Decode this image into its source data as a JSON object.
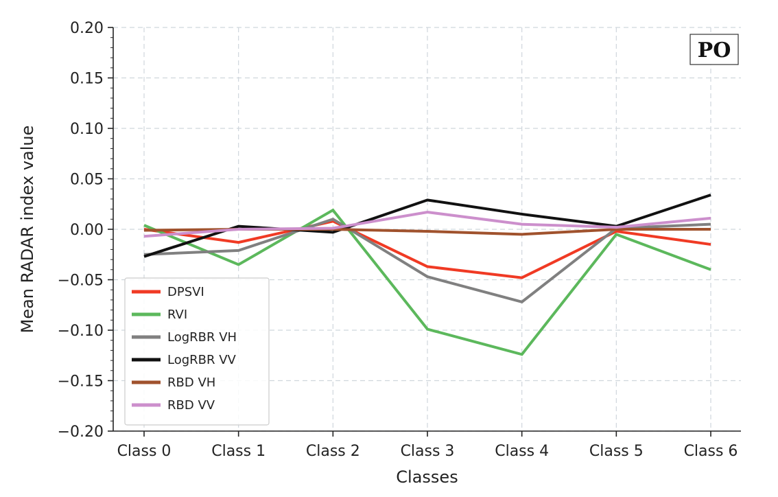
{
  "chart_data": {
    "type": "line",
    "title": "",
    "panel_label": "PO",
    "xlabel": "Classes",
    "ylabel": "Mean RADAR index value",
    "categories": [
      "Class 0",
      "Class 1",
      "Class 2",
      "Class 3",
      "Class 4",
      "Class 5",
      "Class 6"
    ],
    "ylim": [
      -0.2,
      0.2
    ],
    "yticks": [
      -0.2,
      -0.15,
      -0.1,
      -0.05,
      0.0,
      0.05,
      0.1,
      0.15,
      0.2
    ],
    "ytick_labels": [
      "−0.20",
      "−0.15",
      "−0.10",
      "−0.05",
      "0.00",
      "0.05",
      "0.10",
      "0.15",
      "0.20"
    ],
    "grid": true,
    "legend_position": "lower-left",
    "series": [
      {
        "name": "DPSVI",
        "color": "#f03a24",
        "values": [
          0.0,
          -0.013,
          0.008,
          -0.037,
          -0.048,
          -0.002,
          -0.015
        ]
      },
      {
        "name": "RVI",
        "color": "#5cb85c",
        "values": [
          0.004,
          -0.035,
          0.019,
          -0.099,
          -0.124,
          -0.005,
          -0.04
        ]
      },
      {
        "name": "LogRBR VH",
        "color": "#808080",
        "values": [
          -0.025,
          -0.021,
          0.01,
          -0.047,
          -0.072,
          0.001,
          0.005
        ]
      },
      {
        "name": "LogRBR VV",
        "color": "#111111",
        "values": [
          -0.027,
          0.003,
          -0.003,
          0.029,
          0.015,
          0.003,
          0.034
        ]
      },
      {
        "name": "RBD VH",
        "color": "#a0522d",
        "values": [
          -0.001,
          0.0,
          0.0,
          -0.002,
          -0.005,
          0.0,
          0.0
        ]
      },
      {
        "name": "RBD VV",
        "color": "#cc8fcc",
        "values": [
          -0.007,
          0.0,
          0.001,
          0.017,
          0.005,
          0.002,
          0.011
        ]
      }
    ]
  }
}
